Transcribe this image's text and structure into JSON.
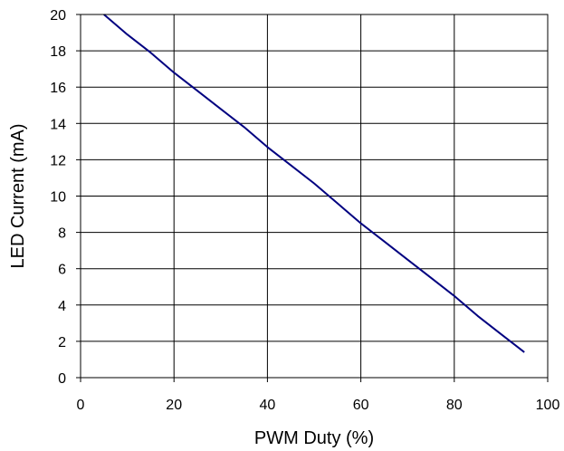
{
  "chart_data": {
    "type": "line",
    "title": "",
    "xlabel": "PWM Duty (%)",
    "ylabel": "LED Current (mA)",
    "xlim": [
      0,
      100
    ],
    "ylim": [
      0,
      20
    ],
    "x_ticks": [
      0,
      20,
      40,
      60,
      80,
      100
    ],
    "y_ticks": [
      0,
      2,
      4,
      6,
      8,
      10,
      12,
      14,
      16,
      18,
      20
    ],
    "grid": true,
    "legend": "none",
    "series": [
      {
        "color": "#000080",
        "x": [
          5,
          10,
          15,
          20,
          25,
          30,
          35,
          40,
          45,
          50,
          55,
          60,
          65,
          70,
          75,
          80,
          85,
          90,
          95
        ],
        "y": [
          20.0,
          18.9,
          17.9,
          16.8,
          15.8,
          14.8,
          13.8,
          12.7,
          11.7,
          10.7,
          9.6,
          8.5,
          7.5,
          6.5,
          5.5,
          4.5,
          3.4,
          2.4,
          1.4
        ]
      }
    ]
  }
}
